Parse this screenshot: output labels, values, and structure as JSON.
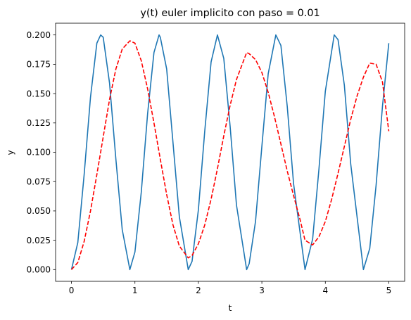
{
  "chart_data": {
    "type": "line",
    "title": "y(t) euler implicito con paso = 0.01",
    "xlabel": "t",
    "ylabel": "y",
    "xlim": [
      -0.25,
      5.25
    ],
    "ylim": [
      -0.01,
      0.21
    ],
    "x_ticks": [
      "0",
      "1",
      "2",
      "3",
      "4",
      "5"
    ],
    "y_ticks": [
      "0.000",
      "0.025",
      "0.050",
      "0.075",
      "0.100",
      "0.125",
      "0.150",
      "0.175",
      "0.200"
    ],
    "grid": false,
    "legend": "none",
    "series": [
      {
        "color": "#1f77b4",
        "style": "solid",
        "x": [
          0.0,
          0.1,
          0.2,
          0.3,
          0.4,
          0.46,
          0.5,
          0.6,
          0.7,
          0.8,
          0.92,
          1.0,
          1.1,
          1.2,
          1.3,
          1.38,
          1.4,
          1.5,
          1.6,
          1.7,
          1.84,
          1.9,
          2.0,
          2.1,
          2.2,
          2.3,
          2.4,
          2.5,
          2.6,
          2.76,
          2.8,
          2.9,
          3.0,
          3.1,
          3.22,
          3.3,
          3.4,
          3.5,
          3.68,
          3.8,
          3.9,
          4.0,
          4.14,
          4.2,
          4.3,
          4.4,
          4.6,
          4.7,
          4.8,
          4.9,
          5.0
        ],
        "y": [
          0.0,
          0.023,
          0.081,
          0.147,
          0.193,
          0.2,
          0.198,
          0.159,
          0.094,
          0.034,
          0.0,
          0.015,
          0.066,
          0.133,
          0.185,
          0.2,
          0.198,
          0.171,
          0.108,
          0.045,
          0.0,
          0.007,
          0.051,
          0.118,
          0.177,
          0.2,
          0.18,
          0.122,
          0.055,
          0.0,
          0.005,
          0.041,
          0.105,
          0.167,
          0.2,
          0.191,
          0.139,
          0.073,
          0.0,
          0.026,
          0.086,
          0.152,
          0.2,
          0.196,
          0.157,
          0.09,
          0.0,
          0.018,
          0.072,
          0.139,
          0.193
        ]
      },
      {
        "color": "#ff0000",
        "style": "dashed",
        "x": [
          0.0,
          0.1,
          0.2,
          0.3,
          0.4,
          0.5,
          0.6,
          0.7,
          0.8,
          0.92,
          1.0,
          1.1,
          1.2,
          1.3,
          1.4,
          1.5,
          1.6,
          1.7,
          1.84,
          1.9,
          2.0,
          2.1,
          2.2,
          2.3,
          2.4,
          2.5,
          2.6,
          2.76,
          2.8,
          2.9,
          3.0,
          3.1,
          3.2,
          3.3,
          3.4,
          3.5,
          3.6,
          3.68,
          3.8,
          3.9,
          4.0,
          4.1,
          4.2,
          4.3,
          4.4,
          4.5,
          4.6,
          4.7,
          4.8,
          4.9,
          5.0
        ],
        "y": [
          0.0,
          0.006,
          0.024,
          0.05,
          0.081,
          0.113,
          0.145,
          0.171,
          0.188,
          0.195,
          0.193,
          0.178,
          0.154,
          0.125,
          0.094,
          0.064,
          0.038,
          0.02,
          0.01,
          0.012,
          0.022,
          0.038,
          0.06,
          0.086,
          0.114,
          0.14,
          0.162,
          0.185,
          0.184,
          0.179,
          0.168,
          0.151,
          0.13,
          0.107,
          0.084,
          0.063,
          0.043,
          0.025,
          0.021,
          0.028,
          0.041,
          0.06,
          0.082,
          0.105,
          0.128,
          0.148,
          0.164,
          0.176,
          0.175,
          0.16,
          0.118
        ]
      }
    ]
  }
}
